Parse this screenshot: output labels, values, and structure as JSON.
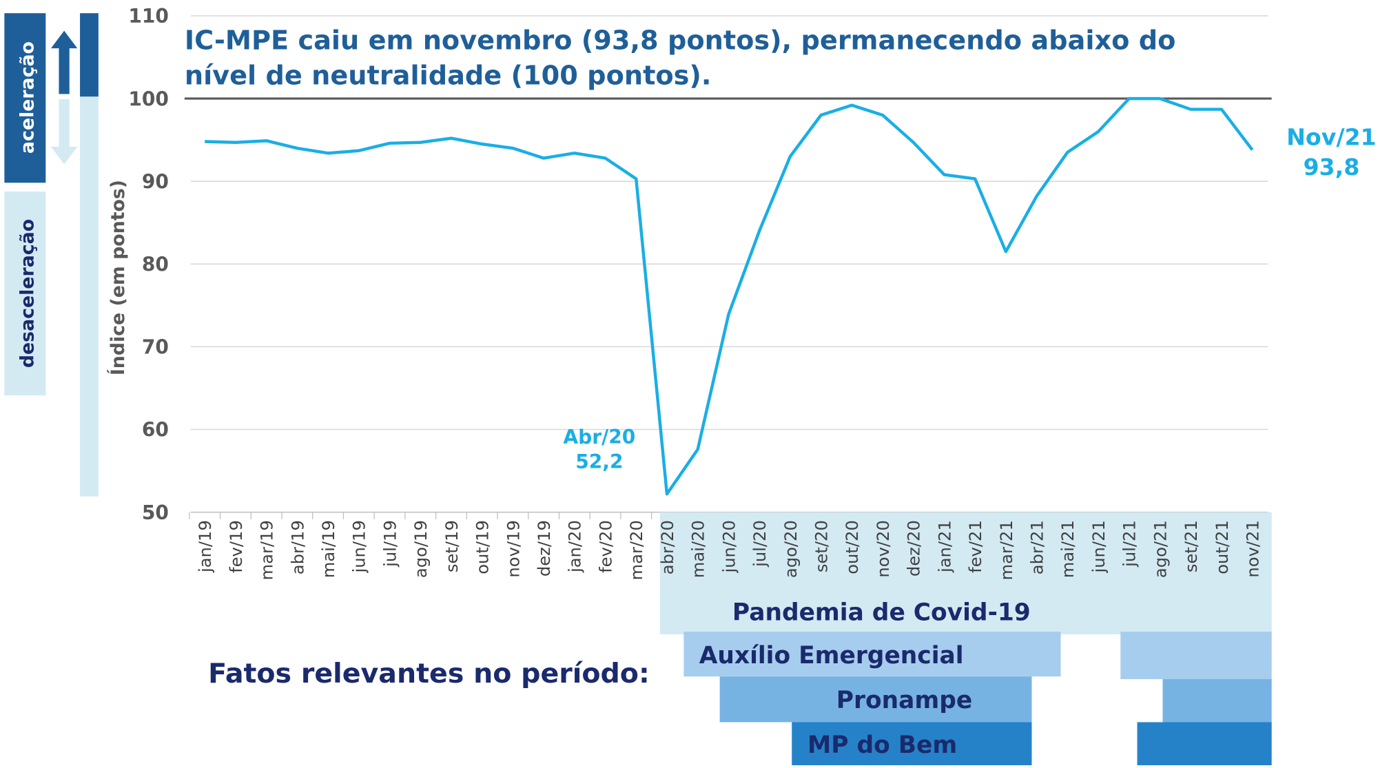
{
  "chart_data": {
    "type": "line",
    "title": [
      "IC-MPE caiu em novembro (93,8 pontos), permanecendo abaixo do",
      "nível de neutralidade (100 pontos)."
    ],
    "y_label": "Índice (em pontos)",
    "side_labels": [
      "aceleração",
      "desaceleração"
    ],
    "categories": [
      "jan/19",
      "fev/19",
      "mar/19",
      "abr/19",
      "mai/19",
      "jun/19",
      "jul/19",
      "ago/19",
      "set/19",
      "out/19",
      "nov/19",
      "dez/19",
      "jan/20",
      "fev/20",
      "mar/20",
      "abr/20",
      "mai/20",
      "jun/20",
      "jul/20",
      "ago/20",
      "set/20",
      "out/20",
      "nov/20",
      "dez/20",
      "jan/21",
      "fev/21",
      "mar/21",
      "abr/21",
      "mai/21",
      "jun/21",
      "jul/21",
      "ago/21",
      "set/21",
      "out/21",
      "nov/21"
    ],
    "series": [
      {
        "name": "IC-MPE",
        "color": "#1aaee5",
        "values": [
          94.8,
          94.7,
          94.9,
          94.0,
          93.4,
          93.7,
          94.6,
          94.7,
          95.2,
          94.5,
          94.0,
          92.8,
          93.4,
          92.8,
          90.3,
          52.2,
          57.6,
          73.9,
          84.0,
          93.0,
          98.0,
          99.2,
          98.0,
          94.7,
          90.8,
          90.3,
          81.5,
          88.2,
          93.5,
          96.0,
          100.0,
          100.0,
          98.7,
          98.7,
          93.8
        ],
        "point_labels": [
          null,
          null,
          null,
          null,
          null,
          null,
          null,
          null,
          null,
          null,
          null,
          null,
          null,
          null,
          null,
          "Abr/20",
          null,
          null,
          null,
          null,
          null,
          null,
          null,
          null,
          null,
          null,
          null,
          null,
          null,
          null,
          null,
          null,
          null,
          null,
          "Nov/21"
        ],
        "value_labels": [
          null,
          null,
          null,
          null,
          null,
          null,
          null,
          null,
          null,
          null,
          null,
          null,
          null,
          null,
          null,
          "52,2",
          null,
          null,
          null,
          null,
          null,
          null,
          null,
          null,
          null,
          null,
          null,
          null,
          null,
          null,
          null,
          null,
          null,
          null,
          "93,8"
        ]
      }
    ],
    "reference_line": 100,
    "ylim": [
      50,
      110
    ],
    "yticks": [
      50,
      60,
      70,
      80,
      90,
      100,
      110
    ],
    "grid": true,
    "period_heading": "Fatos relevantes no período:",
    "periods": [
      "Pandemia de Covid-19",
      "Auxílio Emergencial",
      "Pronampe",
      "MP do Bem"
    ]
  }
}
